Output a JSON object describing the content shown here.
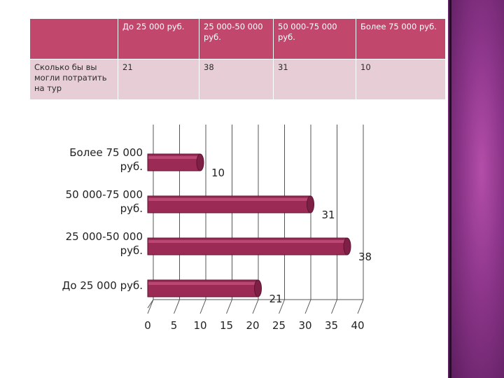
{
  "table": {
    "columns": [
      "",
      "До 25 000 руб.",
      "25 000-50 000 руб.",
      "50 000-75 000 руб.",
      "Более 75 000 руб."
    ],
    "row_label": "Сколько бы вы могли потратить на тур",
    "row_values": [
      "21",
      "38",
      "31",
      "10"
    ]
  },
  "chart_data": {
    "type": "bar",
    "orientation": "horizontal",
    "categories": [
      "До 25 000 руб.",
      "25 000-50 000 руб.",
      "50 000-75 000 руб.",
      "Более 75 000 руб."
    ],
    "category_label_lines": [
      [
        "До 25 000 руб."
      ],
      [
        "25 000-50 000",
        "руб."
      ],
      [
        "50 000-75 000",
        "руб."
      ],
      [
        "Более 75 000",
        "руб."
      ]
    ],
    "values": [
      21,
      38,
      31,
      10
    ],
    "xlim": [
      0,
      40
    ],
    "xticks": [
      0,
      5,
      10,
      15,
      20,
      25,
      30,
      35,
      40
    ],
    "grid": true,
    "bar_color": "#9b2a55",
    "title": "",
    "xlabel": "",
    "ylabel": ""
  },
  "colors": {
    "header": "#c1476c",
    "row": "#e7cdd5",
    "bar": "#9b2a55",
    "accent": "#8a3488"
  }
}
